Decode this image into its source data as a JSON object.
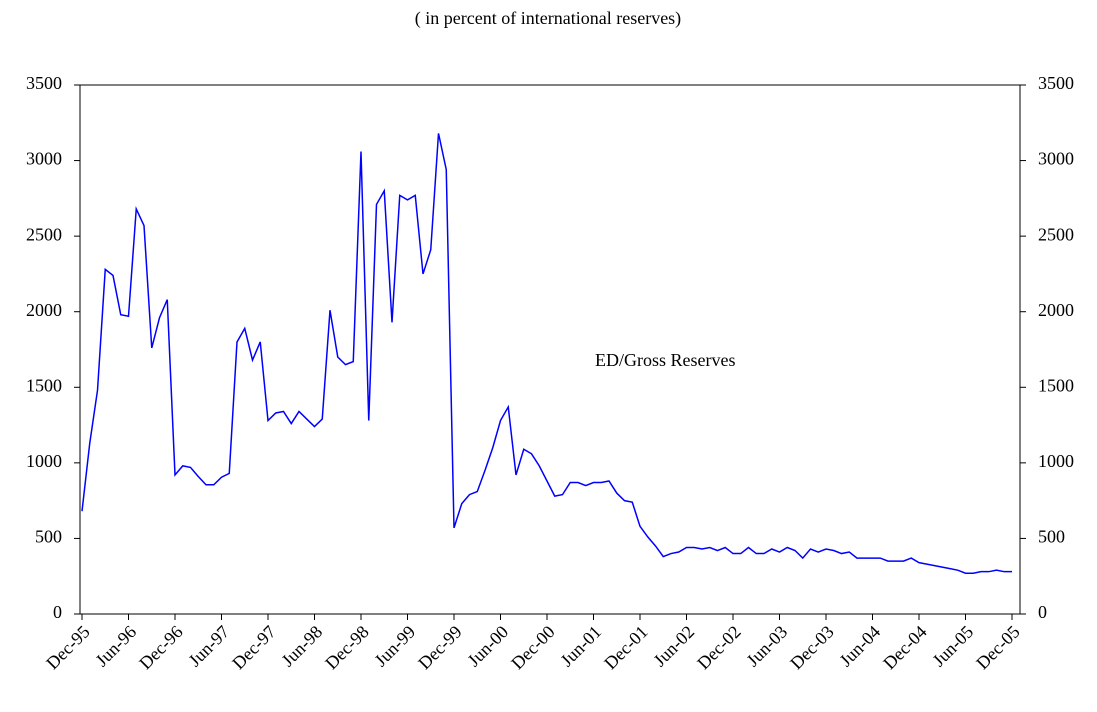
{
  "chart_data": {
    "type": "line",
    "subtitle": "( in percent of international reserves)",
    "annotation": "ED/Gross Reserves",
    "categories": [
      "Dec-95",
      null,
      null,
      null,
      null,
      null,
      "Jun-96",
      null,
      null,
      null,
      null,
      null,
      "Dec-96",
      null,
      null,
      null,
      null,
      null,
      "Jun-97",
      null,
      null,
      null,
      null,
      null,
      "Dec-97",
      null,
      null,
      null,
      null,
      null,
      "Jun-98",
      null,
      null,
      null,
      null,
      null,
      "Dec-98",
      null,
      null,
      null,
      null,
      null,
      "Jun-99",
      null,
      null,
      null,
      null,
      null,
      "Dec-99",
      null,
      null,
      null,
      null,
      null,
      "Jun-00",
      null,
      null,
      null,
      null,
      null,
      "Dec-00",
      null,
      null,
      null,
      null,
      null,
      "Jun-01",
      null,
      null,
      null,
      null,
      null,
      "Dec-01",
      null,
      null,
      null,
      null,
      null,
      "Jun-02",
      null,
      null,
      null,
      null,
      null,
      "Dec-02",
      null,
      null,
      null,
      null,
      null,
      "Jun-03",
      null,
      null,
      null,
      null,
      null,
      "Dec-03",
      null,
      null,
      null,
      null,
      null,
      "Jun-04",
      null,
      null,
      null,
      null,
      null,
      "Dec-04",
      null,
      null,
      null,
      null,
      null,
      "Jun-05",
      null,
      null,
      null,
      null,
      null,
      "Dec-05"
    ],
    "values": [
      680,
      1130,
      1480,
      2280,
      2240,
      1980,
      1970,
      2680,
      2570,
      1760,
      1960,
      2080,
      920,
      980,
      970,
      910,
      855,
      855,
      905,
      930,
      1800,
      1890,
      1680,
      1800,
      1280,
      1330,
      1340,
      1260,
      1340,
      1290,
      1240,
      1290,
      2010,
      1700,
      1650,
      1670,
      3060,
      1280,
      2710,
      2800,
      1930,
      2770,
      2740,
      2770,
      2250,
      2410,
      3180,
      2940,
      570,
      730,
      790,
      810,
      950,
      1100,
      1280,
      1370,
      920,
      1090,
      1060,
      980,
      880,
      780,
      790,
      870,
      870,
      850,
      870,
      870,
      880,
      800,
      750,
      740,
      580,
      510,
      450,
      380,
      400,
      410,
      440,
      440,
      430,
      440,
      420,
      440,
      400,
      400,
      440,
      400,
      400,
      430,
      410,
      440,
      420,
      370,
      430,
      410,
      430,
      420,
      400,
      410,
      370,
      370,
      370,
      370,
      350,
      350,
      350,
      370,
      340,
      330,
      320,
      310,
      300,
      290,
      270,
      270,
      280,
      280,
      290,
      280,
      280
    ],
    "color": "#0000ff",
    "ylim": [
      0,
      3500
    ],
    "yticks": [
      0,
      500,
      1000,
      1500,
      2000,
      2500,
      3000,
      3500
    ],
    "y2lim": [
      0,
      3500
    ],
    "y2ticks": [
      0,
      500,
      1000,
      1500,
      2000,
      2500,
      3000,
      3500
    ]
  }
}
